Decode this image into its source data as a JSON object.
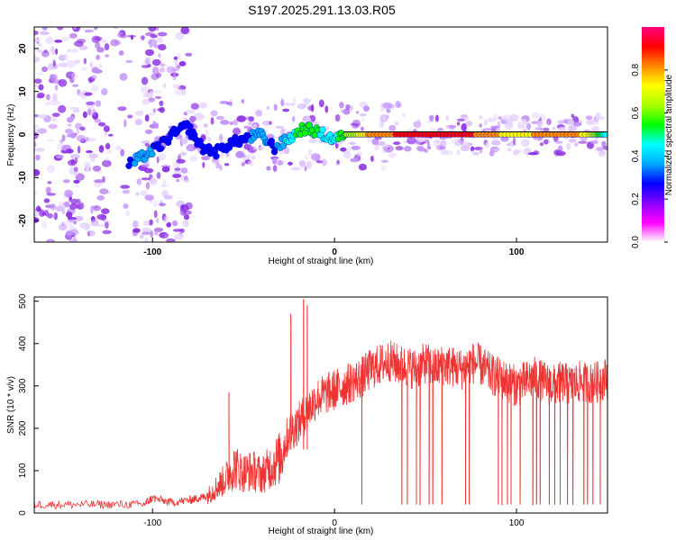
{
  "title": "S197.2025.291.13.03.R05",
  "chart_data": [
    {
      "type": "heatmap",
      "name": "spectrogram",
      "xlabel": "Height of straight line (km)",
      "ylabel": "Frequency (Hz)",
      "xlim": [
        -165,
        150
      ],
      "ylim": [
        -25,
        25
      ],
      "xticks": [
        -100,
        0,
        100
      ],
      "yticks": [
        -20,
        -10,
        0,
        10,
        20
      ],
      "reference_line_y": 0,
      "ridge": {
        "x": [
          -113,
          -105,
          -97,
          -89,
          -81,
          -73,
          -65,
          -57,
          -49,
          -41,
          -33,
          -25,
          -17,
          -9,
          -1,
          7,
          20,
          40,
          60,
          80,
          100,
          120,
          140,
          150
        ],
        "y": [
          -7,
          -5,
          -3,
          0,
          2,
          -3,
          -4,
          -2,
          -1,
          0,
          -3,
          -1,
          1.5,
          0.5,
          -1,
          0,
          0,
          0,
          0,
          0,
          0,
          0,
          0,
          0
        ],
        "amplitude": [
          0.3,
          0.35,
          0.3,
          0.25,
          0.3,
          0.25,
          0.3,
          0.3,
          0.3,
          0.35,
          0.3,
          0.45,
          0.55,
          0.5,
          0.45,
          0.6,
          0.8,
          0.9,
          0.95,
          0.85,
          0.7,
          0.85,
          0.75,
          0.4
        ]
      },
      "colorbar": {
        "label": "Normalized spectral amplitude",
        "range": [
          0,
          1
        ],
        "ticks": [
          0.0,
          0.2,
          0.4,
          0.6,
          0.8
        ],
        "colors": [
          "#ffffff",
          "#ff00ff",
          "#8800ff",
          "#0000ff",
          "#00aaff",
          "#00ffff",
          "#00ff00",
          "#aaff00",
          "#ffff00",
          "#ff8800",
          "#ff0000",
          "#ff0080"
        ]
      }
    },
    {
      "type": "line",
      "name": "snr",
      "xlabel": "Height of straight line (km)",
      "ylabel": "SNR (10 * v/v)",
      "xlim": [
        -165,
        150
      ],
      "ylim": [
        0,
        510
      ],
      "xticks": [
        -100,
        0,
        100
      ],
      "yticks": [
        0,
        100,
        200,
        300,
        400,
        500
      ],
      "color": "#ee3333",
      "series": [
        {
          "name": "SNR",
          "x": [
            -165,
            -150,
            -135,
            -120,
            -105,
            -100,
            -90,
            -80,
            -75,
            -70,
            -65,
            -60,
            -55,
            -50,
            -45,
            -40,
            -35,
            -30,
            -25,
            -20,
            -15,
            -10,
            -5,
            0,
            5,
            10,
            15,
            20,
            25,
            30,
            35,
            40,
            45,
            50,
            55,
            60,
            65,
            70,
            75,
            80,
            85,
            90,
            95,
            100,
            105,
            110,
            115,
            120,
            125,
            130,
            135,
            140,
            145,
            150
          ],
          "y": [
            20,
            20,
            20,
            20,
            20,
            35,
            25,
            30,
            35,
            40,
            60,
            80,
            110,
            95,
            100,
            90,
            110,
            130,
            190,
            210,
            240,
            270,
            280,
            290,
            300,
            310,
            320,
            340,
            350,
            360,
            350,
            345,
            340,
            355,
            340,
            350,
            345,
            340,
            355,
            350,
            330,
            320,
            310,
            300,
            310,
            320,
            310,
            300,
            310,
            300,
            310,
            305,
            310,
            320
          ]
        }
      ],
      "spikes_up": [
        {
          "x": -58,
          "y": 285
        },
        {
          "x": -24,
          "y": 470
        },
        {
          "x": -17,
          "y": 505
        },
        {
          "x": -15,
          "y": 490
        }
      ],
      "spikes_down": [
        15,
        37,
        40,
        45,
        47,
        52,
        54,
        59,
        72,
        74,
        90,
        92,
        95,
        97,
        102,
        109,
        111,
        113,
        118,
        121,
        124,
        128,
        131,
        137,
        139,
        142,
        146
      ]
    }
  ]
}
